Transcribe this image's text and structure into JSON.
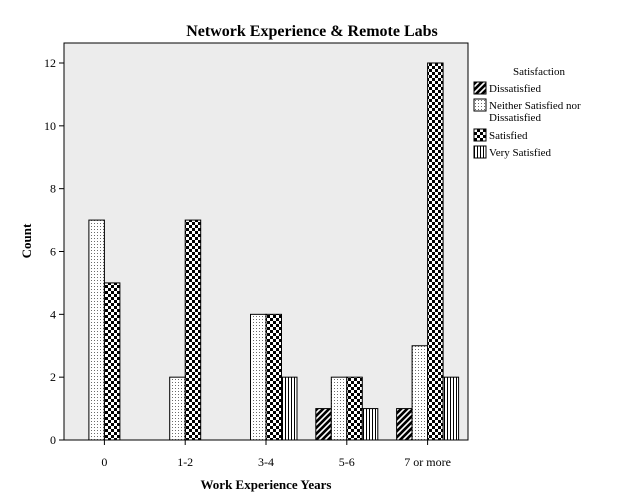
{
  "chart_data": {
    "type": "bar",
    "title": "Network Experience & Remote Labs",
    "xlabel": "Work Experience Years",
    "ylabel": "Count",
    "categories": [
      "0",
      "1-2",
      "3-4",
      "5-6",
      "7 or more"
    ],
    "ylim": [
      0,
      12
    ],
    "yticks": [
      0,
      2,
      4,
      6,
      8,
      10,
      12
    ],
    "grid": false,
    "legend_title": "Satisfaction",
    "legend_position": "right",
    "series": [
      {
        "name": "Dissatisfied",
        "pattern": "diagonal-stripes",
        "values": [
          0,
          0,
          0,
          1,
          1
        ]
      },
      {
        "name": "Neither Satisfied nor Dissatisfied",
        "pattern": "dots",
        "values": [
          7,
          2,
          4,
          2,
          3
        ]
      },
      {
        "name": "Satisfied",
        "pattern": "checkerboard",
        "values": [
          5,
          7,
          4,
          2,
          12
        ]
      },
      {
        "name": "Very Satisfied",
        "pattern": "vertical-stripes",
        "values": [
          0,
          0,
          2,
          1,
          2
        ]
      }
    ],
    "legend_labels": [
      [
        "Dissatisfied"
      ],
      [
        "Neither Satisfied nor",
        "Dissatisfied"
      ],
      [
        "Satisfied"
      ],
      [
        "Very Satisfied"
      ]
    ],
    "colors": {
      "plot_background": "#ececec",
      "bar_stroke": "#000000"
    }
  }
}
